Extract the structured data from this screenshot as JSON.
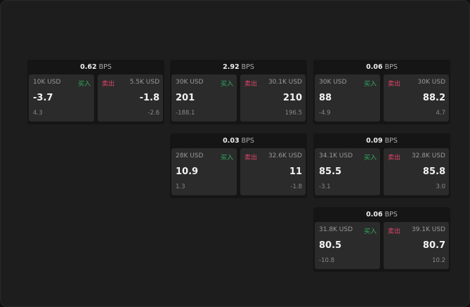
{
  "unit": "BPS",
  "buy_label": "买入",
  "sell_label": "卖出",
  "colors": {
    "buy": "#2fae60",
    "sell": "#e0446a"
  },
  "cards": [
    {
      "spread": "0.62",
      "bid": {
        "size": "10K USD",
        "price": "-3.7",
        "change": "4.3"
      },
      "ask": {
        "size": "5.5K USD",
        "price": "-1.8",
        "change": "-2.6"
      }
    },
    {
      "spread": "2.92",
      "bid": {
        "size": "30K USD",
        "price": "201",
        "change": "-188.1"
      },
      "ask": {
        "size": "30.1K USD",
        "price": "210",
        "change": "196.5"
      }
    },
    {
      "spread": "0.06",
      "bid": {
        "size": "30K USD",
        "price": "88",
        "change": "-4.9"
      },
      "ask": {
        "size": "30K USD",
        "price": "88.2",
        "change": "4.7"
      }
    },
    {
      "spread": "0.03",
      "bid": {
        "size": "28K USD",
        "price": "10.9",
        "change": "1.3"
      },
      "ask": {
        "size": "32.6K USD",
        "price": "11",
        "change": "-1.8"
      }
    },
    {
      "spread": "0.09",
      "bid": {
        "size": "34.1K USD",
        "price": "85.5",
        "change": "-3.1"
      },
      "ask": {
        "size": "32.8K USD",
        "price": "85.8",
        "change": "3.0"
      }
    },
    {
      "spread": "0.06",
      "bid": {
        "size": "31.8K USD",
        "price": "80.5",
        "change": "-10.8"
      },
      "ask": {
        "size": "39.1K USD",
        "price": "80.7",
        "change": "10.2"
      }
    }
  ]
}
